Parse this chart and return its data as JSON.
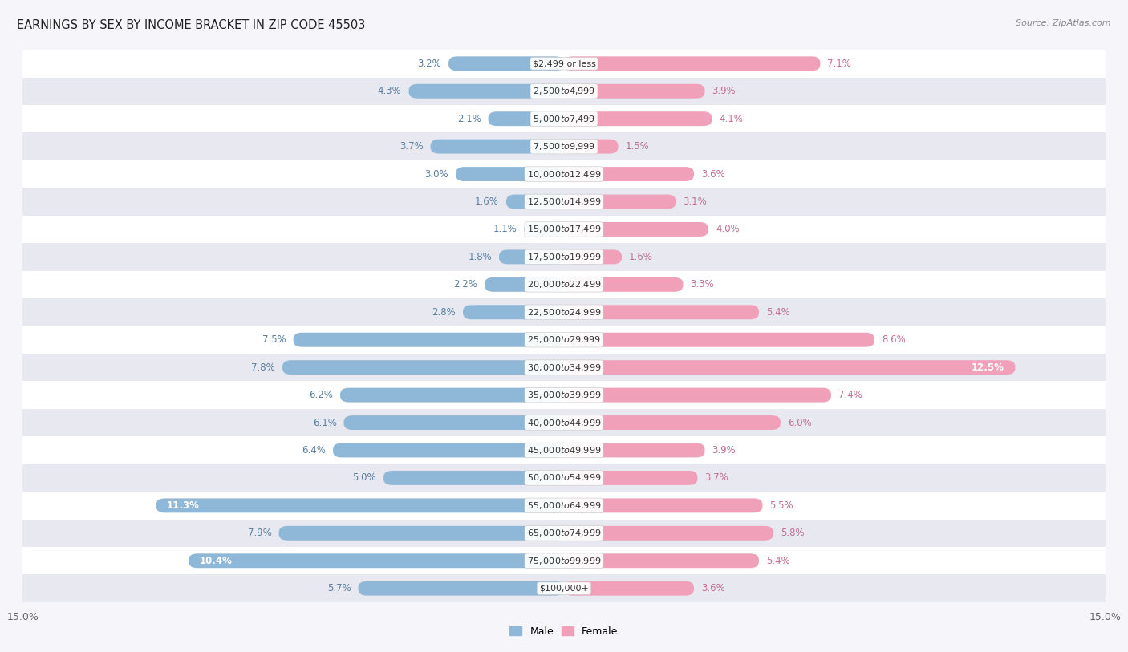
{
  "title": "EARNINGS BY SEX BY INCOME BRACKET IN ZIP CODE 45503",
  "source": "Source: ZipAtlas.com",
  "categories": [
    "$2,499 or less",
    "$2,500 to $4,999",
    "$5,000 to $7,499",
    "$7,500 to $9,999",
    "$10,000 to $12,499",
    "$12,500 to $14,999",
    "$15,000 to $17,499",
    "$17,500 to $19,999",
    "$20,000 to $22,499",
    "$22,500 to $24,999",
    "$25,000 to $29,999",
    "$30,000 to $34,999",
    "$35,000 to $39,999",
    "$40,000 to $44,999",
    "$45,000 to $49,999",
    "$50,000 to $54,999",
    "$55,000 to $64,999",
    "$65,000 to $74,999",
    "$75,000 to $99,999",
    "$100,000+"
  ],
  "male_values": [
    3.2,
    4.3,
    2.1,
    3.7,
    3.0,
    1.6,
    1.1,
    1.8,
    2.2,
    2.8,
    7.5,
    7.8,
    6.2,
    6.1,
    6.4,
    5.0,
    11.3,
    7.9,
    10.4,
    5.7
  ],
  "female_values": [
    7.1,
    3.9,
    4.1,
    1.5,
    3.6,
    3.1,
    4.0,
    1.6,
    3.3,
    5.4,
    8.6,
    12.5,
    7.4,
    6.0,
    3.9,
    3.7,
    5.5,
    5.8,
    5.4,
    3.6
  ],
  "male_color": "#8fb8d8",
  "female_color": "#f0a0b8",
  "male_label_color": "#5a7fa0",
  "female_label_color": "#c07090",
  "bg_stripe_light": "#f5f5fa",
  "bg_stripe_dark": "#e8e8f0",
  "row_white": "#ffffff",
  "xlim": 15.0,
  "title_fontsize": 10.5,
  "label_fontsize": 8.5,
  "tick_fontsize": 9,
  "bar_height": 0.52,
  "cat_label_fontsize": 8.0
}
